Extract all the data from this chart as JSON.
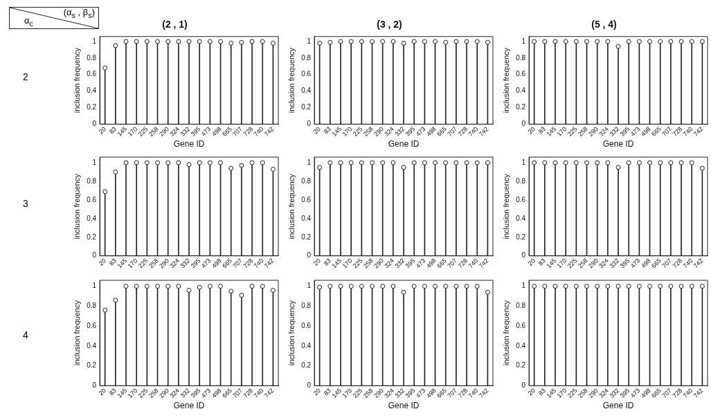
{
  "chart_data": [
    {
      "type": "lollipop",
      "title": "(2 , 1)",
      "xlabel": "Gene ID",
      "ylabel": "inclusion frequency",
      "annotations": [
        "α$_{c}$",
        "(α$_{s}$ , β$_{s}$)",
        "2"
      ],
      "categories": [
        "20",
        "83",
        "145",
        "170",
        "225",
        "258",
        "290",
        "324",
        "332",
        "395",
        "473",
        "498",
        "665",
        "707",
        "728",
        "740",
        "742"
      ],
      "color": "#222222",
      "marker": "circle",
      "ylim": [
        0,
        1.06
      ],
      "yticks": [
        0,
        0.2,
        0.4,
        0.6,
        0.8,
        1
      ],
      "values": [
        0.68,
        0.95,
        1,
        1,
        1,
        1,
        1,
        1,
        1,
        1,
        1,
        1,
        0.98,
        0.99,
        1,
        1,
        0.98
      ]
    },
    {
      "type": "lollipop",
      "title": "(3 , 2)",
      "xlabel": "Gene ID",
      "ylabel": "inclusion frequency",
      "categories": [
        "20",
        "83",
        "145",
        "170",
        "225",
        "258",
        "290",
        "324",
        "332",
        "395",
        "473",
        "498",
        "665",
        "707",
        "728",
        "740",
        "742"
      ],
      "color": "#222222",
      "marker": "circle",
      "ylim": [
        0,
        1.06
      ],
      "yticks": [
        0,
        0.2,
        0.4,
        0.6,
        0.8,
        1
      ],
      "values": [
        0.98,
        0.99,
        1,
        1,
        1,
        1,
        1,
        1,
        0.98,
        1,
        1,
        1,
        0.99,
        1,
        1,
        1,
        0.99
      ]
    },
    {
      "type": "lollipop",
      "title": "(5 , 4)",
      "xlabel": "Gene ID",
      "ylabel": "inclusion frequency",
      "categories": [
        "20",
        "83",
        "145",
        "170",
        "225",
        "258",
        "290",
        "324",
        "332",
        "395",
        "473",
        "498",
        "665",
        "707",
        "728",
        "740",
        "742"
      ],
      "color": "#222222",
      "marker": "circle",
      "ylim": [
        0,
        1.06
      ],
      "yticks": [
        0,
        0.2,
        0.4,
        0.6,
        0.8,
        1
      ],
      "values": [
        1,
        1,
        1,
        1,
        1,
        1,
        1,
        1,
        0.94,
        1,
        1,
        1,
        1,
        1,
        1,
        1,
        1
      ]
    },
    {
      "type": "lollipop",
      "ylabel": "inclusion frequency",
      "annotations": [
        "3"
      ],
      "categories": [
        "20",
        "83",
        "145",
        "170",
        "225",
        "258",
        "290",
        "324",
        "332",
        "395",
        "473",
        "498",
        "665",
        "707",
        "728",
        "740",
        "742"
      ],
      "color": "#222222",
      "marker": "circle",
      "ylim": [
        0,
        1.06
      ],
      "yticks": [
        0,
        0.2,
        0.4,
        0.6,
        0.8,
        1
      ],
      "values": [
        0.69,
        0.9,
        1,
        1,
        1,
        1,
        1,
        1,
        0.98,
        1,
        1,
        1,
        0.94,
        0.97,
        1,
        1,
        0.93
      ]
    },
    {
      "type": "lollipop",
      "ylabel": "inclusion frequency",
      "categories": [
        "20",
        "83",
        "145",
        "170",
        "225",
        "258",
        "290",
        "324",
        "332",
        "395",
        "473",
        "498",
        "665",
        "707",
        "728",
        "740",
        "742"
      ],
      "color": "#222222",
      "marker": "circle",
      "ylim": [
        0,
        1.06
      ],
      "yticks": [
        0,
        0.2,
        0.4,
        0.6,
        0.8,
        1
      ],
      "values": [
        0.95,
        1,
        1,
        1,
        1,
        1,
        1,
        1,
        0.95,
        1,
        1,
        1,
        1,
        1,
        1,
        1,
        1
      ]
    },
    {
      "type": "lollipop",
      "ylabel": "inclusion frequency",
      "categories": [
        "20",
        "83",
        "145",
        "170",
        "225",
        "258",
        "290",
        "324",
        "332",
        "395",
        "473",
        "498",
        "665",
        "707",
        "728",
        "740",
        "742"
      ],
      "color": "#222222",
      "marker": "circle",
      "ylim": [
        0,
        1.06
      ],
      "yticks": [
        0,
        0.2,
        0.4,
        0.6,
        0.8,
        1
      ],
      "values": [
        1,
        1,
        1,
        1,
        1,
        1,
        1,
        1,
        0.95,
        1,
        1,
        1,
        1,
        1,
        1,
        1,
        0.94
      ]
    },
    {
      "type": "lollipop",
      "xlabel": "Gene ID",
      "ylabel": "inclusion frequency",
      "annotations": [
        "4"
      ],
      "categories": [
        "20",
        "83",
        "145",
        "170",
        "225",
        "258",
        "290",
        "324",
        "332",
        "395",
        "473",
        "498",
        "665",
        "707",
        "728",
        "740",
        "742"
      ],
      "color": "#222222",
      "marker": "circle",
      "ylim": [
        0,
        1.06
      ],
      "yticks": [
        0,
        0.2,
        0.4,
        0.6,
        0.8,
        1
      ],
      "values": [
        0.76,
        0.86,
        1,
        1,
        1,
        1,
        1,
        1,
        0.96,
        0.99,
        1,
        1,
        0.95,
        0.91,
        1,
        1,
        0.96
      ]
    },
    {
      "type": "lollipop",
      "xlabel": "Gene ID",
      "ylabel": "inclusion frequency",
      "categories": [
        "20",
        "83",
        "145",
        "170",
        "225",
        "258",
        "290",
        "324",
        "332",
        "395",
        "473",
        "498",
        "665",
        "707",
        "728",
        "740",
        "742"
      ],
      "color": "#222222",
      "marker": "circle",
      "ylim": [
        0,
        1.06
      ],
      "yticks": [
        0,
        0.2,
        0.4,
        0.6,
        0.8,
        1
      ],
      "values": [
        0.99,
        1,
        1,
        1,
        1,
        1,
        1,
        1,
        0.94,
        1,
        1,
        1,
        1,
        1,
        1,
        1,
        0.94
      ]
    },
    {
      "type": "lollipop",
      "xlabel": "Gene ID",
      "ylabel": "inclusion frequency",
      "categories": [
        "20",
        "83",
        "145",
        "170",
        "225",
        "258",
        "290",
        "324",
        "332",
        "395",
        "473",
        "498",
        "665",
        "707",
        "728",
        "740",
        "742"
      ],
      "color": "#222222",
      "marker": "circle",
      "ylim": [
        0,
        1.06
      ],
      "yticks": [
        0,
        0.2,
        0.4,
        0.6,
        0.8,
        1
      ],
      "values": [
        1,
        1,
        1,
        1,
        1,
        1,
        1,
        1,
        1,
        1,
        1,
        1,
        1,
        1,
        1,
        1,
        1
      ]
    }
  ]
}
